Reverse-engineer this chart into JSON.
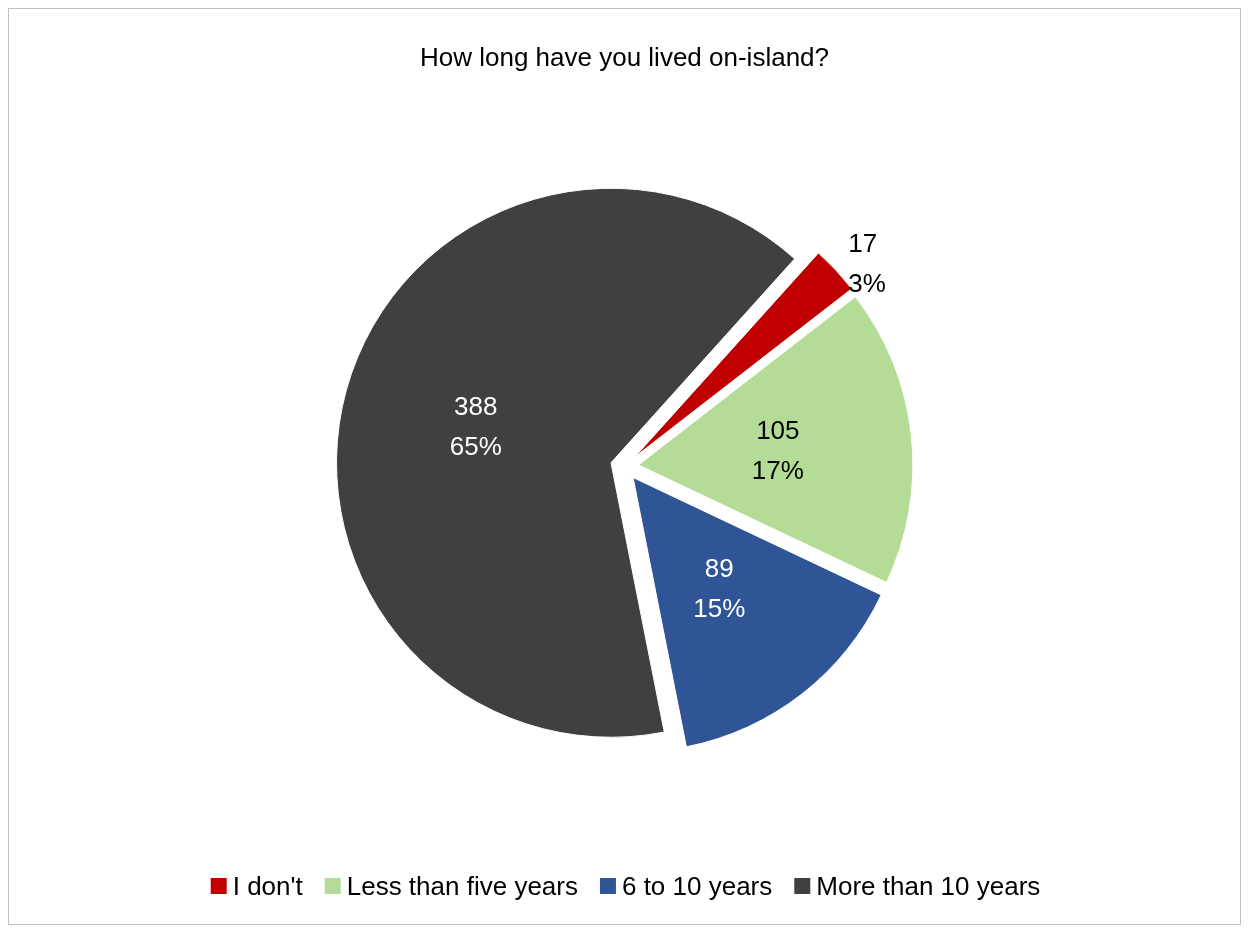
{
  "chart_data": {
    "type": "pie",
    "title": "How long have you lived on-island?",
    "categories": [
      "I don't",
      "Less than five years",
      "6 to 10 years",
      "More than 10 years"
    ],
    "values": [
      17,
      105,
      89,
      388
    ],
    "colors": [
      "#c00000",
      "#b4dc96",
      "#2f5597",
      "#404040"
    ],
    "value_labels": [
      "17\n3%",
      "105\n17%",
      "89\n15%",
      "388\n65%"
    ],
    "legend": "bottom"
  }
}
